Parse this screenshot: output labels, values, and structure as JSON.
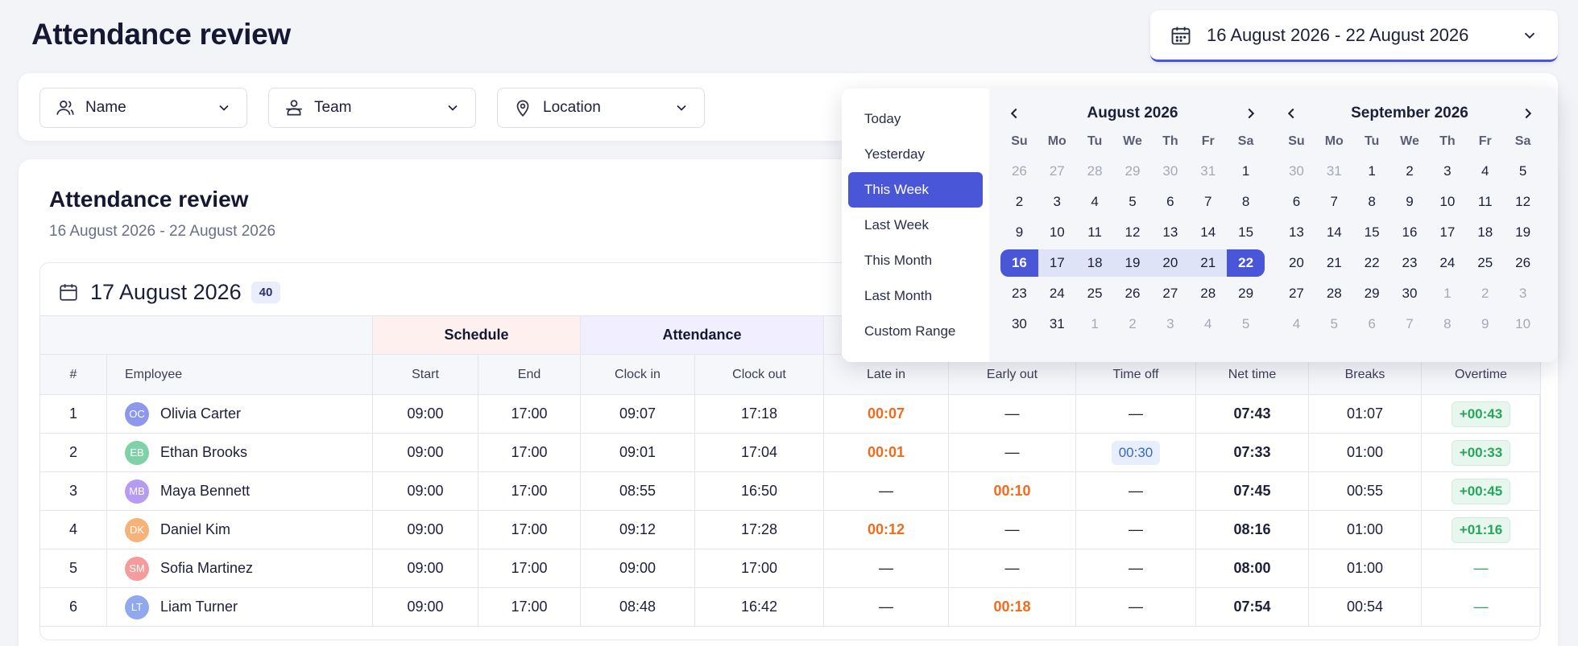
{
  "page": {
    "title": "Attendance review"
  },
  "date_range": {
    "value": "16 August 2026 - 22 August 2026",
    "icon": "calendar-icon",
    "chevron": "chevron-down-icon"
  },
  "filters": [
    {
      "label": "Name",
      "icon": "user-icon"
    },
    {
      "label": "Team",
      "icon": "team-icon"
    },
    {
      "label": "Location",
      "icon": "location-pin-icon"
    }
  ],
  "card": {
    "title": "Attendance review",
    "subtitle": "16 August 2026 - 22 August 2026"
  },
  "day": {
    "date": "17 August 2026",
    "count": "40"
  },
  "table": {
    "groups": {
      "schedule": "Schedule",
      "attendance": "Attendance"
    },
    "columns": [
      "#",
      "Employee",
      "Start",
      "End",
      "Clock in",
      "Clock out",
      "Late in",
      "Early out",
      "Time off",
      "Net time",
      "Breaks",
      "Overtime"
    ],
    "rows": [
      {
        "n": "1",
        "initials": "OC",
        "color": "#8d97ee",
        "name": "Olivia Carter",
        "start": "09:00",
        "end": "17:00",
        "clock_in": "09:07",
        "clock_out": "17:18",
        "late_in": "00:07",
        "early_out": "—",
        "time_off": "—",
        "net": "07:43",
        "breaks": "01:07",
        "overtime": "+00:43"
      },
      {
        "n": "2",
        "initials": "EB",
        "color": "#7fd1a8",
        "name": "Ethan Brooks",
        "start": "09:00",
        "end": "17:00",
        "clock_in": "09:01",
        "clock_out": "17:04",
        "late_in": "00:01",
        "early_out": "—",
        "time_off": "00:30",
        "net": "07:33",
        "breaks": "01:00",
        "overtime": "+00:33"
      },
      {
        "n": "3",
        "initials": "MB",
        "color": "#b59cf2",
        "name": "Maya Bennett",
        "start": "09:00",
        "end": "17:00",
        "clock_in": "08:55",
        "clock_out": "16:50",
        "late_in": "—",
        "early_out": "00:10",
        "time_off": "—",
        "net": "07:45",
        "breaks": "00:55",
        "overtime": "+00:45"
      },
      {
        "n": "4",
        "initials": "DK",
        "color": "#f7b27a",
        "name": "Daniel Kim",
        "start": "09:00",
        "end": "17:00",
        "clock_in": "09:12",
        "clock_out": "17:28",
        "late_in": "00:12",
        "early_out": "—",
        "time_off": "—",
        "net": "08:16",
        "breaks": "01:00",
        "overtime": "+01:16"
      },
      {
        "n": "5",
        "initials": "SM",
        "color": "#f59b9b",
        "name": "Sofia Martinez",
        "start": "09:00",
        "end": "17:00",
        "clock_in": "09:00",
        "clock_out": "17:00",
        "late_in": "—",
        "early_out": "—",
        "time_off": "—",
        "net": "08:00",
        "breaks": "01:00",
        "overtime": "—"
      },
      {
        "n": "6",
        "initials": "LT",
        "color": "#8fa8ee",
        "name": "Liam Turner",
        "start": "09:00",
        "end": "17:00",
        "clock_in": "08:48",
        "clock_out": "16:42",
        "late_in": "—",
        "early_out": "00:18",
        "time_off": "—",
        "net": "07:54",
        "breaks": "00:54",
        "overtime": "—"
      }
    ]
  },
  "picker": {
    "presets": [
      "Today",
      "Yesterday",
      "This Week",
      "Last Week",
      "This Month",
      "Last Month",
      "Custom Range"
    ],
    "active_preset": "This Week",
    "dow": [
      "Su",
      "Mo",
      "Tu",
      "We",
      "Th",
      "Fr",
      "Sa"
    ],
    "months": [
      {
        "name": "August 2026",
        "weeks": [
          [
            "26",
            "27",
            "28",
            "29",
            "30",
            "31",
            "1"
          ],
          [
            "2",
            "3",
            "4",
            "5",
            "6",
            "7",
            "8"
          ],
          [
            "9",
            "10",
            "11",
            "12",
            "13",
            "14",
            "15"
          ],
          [
            "16",
            "17",
            "18",
            "19",
            "20",
            "21",
            "22"
          ],
          [
            "23",
            "24",
            "25",
            "26",
            "27",
            "28",
            "29"
          ],
          [
            "30",
            "31",
            "1",
            "2",
            "3",
            "4",
            "5"
          ]
        ],
        "leading_muted": 6,
        "trailing_muted": 5,
        "range_week": 3
      },
      {
        "name": "September 2026",
        "weeks": [
          [
            "30",
            "31",
            "1",
            "2",
            "3",
            "4",
            "5"
          ],
          [
            "6",
            "7",
            "8",
            "9",
            "10",
            "11",
            "12"
          ],
          [
            "13",
            "14",
            "15",
            "16",
            "17",
            "18",
            "19"
          ],
          [
            "20",
            "21",
            "22",
            "23",
            "24",
            "25",
            "26"
          ],
          [
            "27",
            "28",
            "29",
            "30",
            "1",
            "2",
            "3"
          ],
          [
            "4",
            "5",
            "6",
            "7",
            "8",
            "9",
            "10"
          ]
        ],
        "leading_muted": 2,
        "trailing_muted": 10,
        "range_week": -1
      }
    ]
  }
}
